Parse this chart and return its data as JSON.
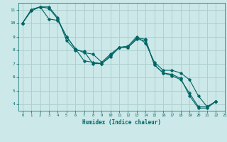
{
  "xlabel": "Humidex (Indice chaleur)",
  "bg_color": "#cce8e8",
  "grid_color": "#aacccc",
  "line_color": "#006666",
  "xlim": [
    -0.5,
    23
  ],
  "ylim": [
    3.5,
    11.5
  ],
  "yticks": [
    4,
    5,
    6,
    7,
    8,
    9,
    10,
    11
  ],
  "xticks": [
    0,
    1,
    2,
    3,
    4,
    5,
    6,
    7,
    8,
    9,
    10,
    11,
    12,
    13,
    14,
    15,
    16,
    17,
    18,
    19,
    20,
    21,
    22,
    23
  ],
  "line1_x": [
    0,
    1,
    2,
    3,
    4,
    5,
    6,
    7,
    8,
    9,
    10,
    11,
    12,
    13,
    14,
    15,
    16,
    17,
    18,
    19,
    20,
    21,
    22
  ],
  "line1_y": [
    10.0,
    11.0,
    11.2,
    11.2,
    10.4,
    8.7,
    8.0,
    7.9,
    7.0,
    7.0,
    7.5,
    8.2,
    8.2,
    8.8,
    8.7,
    6.9,
    6.3,
    6.2,
    5.9,
    4.6,
    3.7,
    3.7,
    4.2
  ],
  "line2_x": [
    0,
    1,
    2,
    3,
    4,
    5,
    6,
    7,
    8,
    9,
    10,
    11,
    12,
    13,
    14,
    15,
    16,
    17,
    18,
    19,
    20,
    21,
    22
  ],
  "line2_y": [
    10.0,
    11.0,
    11.2,
    10.3,
    10.2,
    9.0,
    8.1,
    7.8,
    7.7,
    7.1,
    7.7,
    8.2,
    8.3,
    9.0,
    8.5,
    7.1,
    6.5,
    6.5,
    6.3,
    5.8,
    4.6,
    3.8,
    4.2
  ],
  "line3_x": [
    0,
    1,
    2,
    3,
    4,
    5,
    6,
    7,
    8,
    9,
    10,
    11,
    12,
    13,
    14,
    15,
    16,
    17,
    18,
    19,
    20,
    21,
    22
  ],
  "line3_y": [
    10.0,
    10.9,
    11.2,
    11.1,
    10.3,
    9.0,
    8.1,
    7.2,
    7.1,
    7.0,
    7.6,
    8.2,
    8.2,
    8.9,
    8.8,
    6.9,
    6.3,
    6.1,
    5.8,
    4.8,
    3.8,
    3.8,
    4.2
  ]
}
